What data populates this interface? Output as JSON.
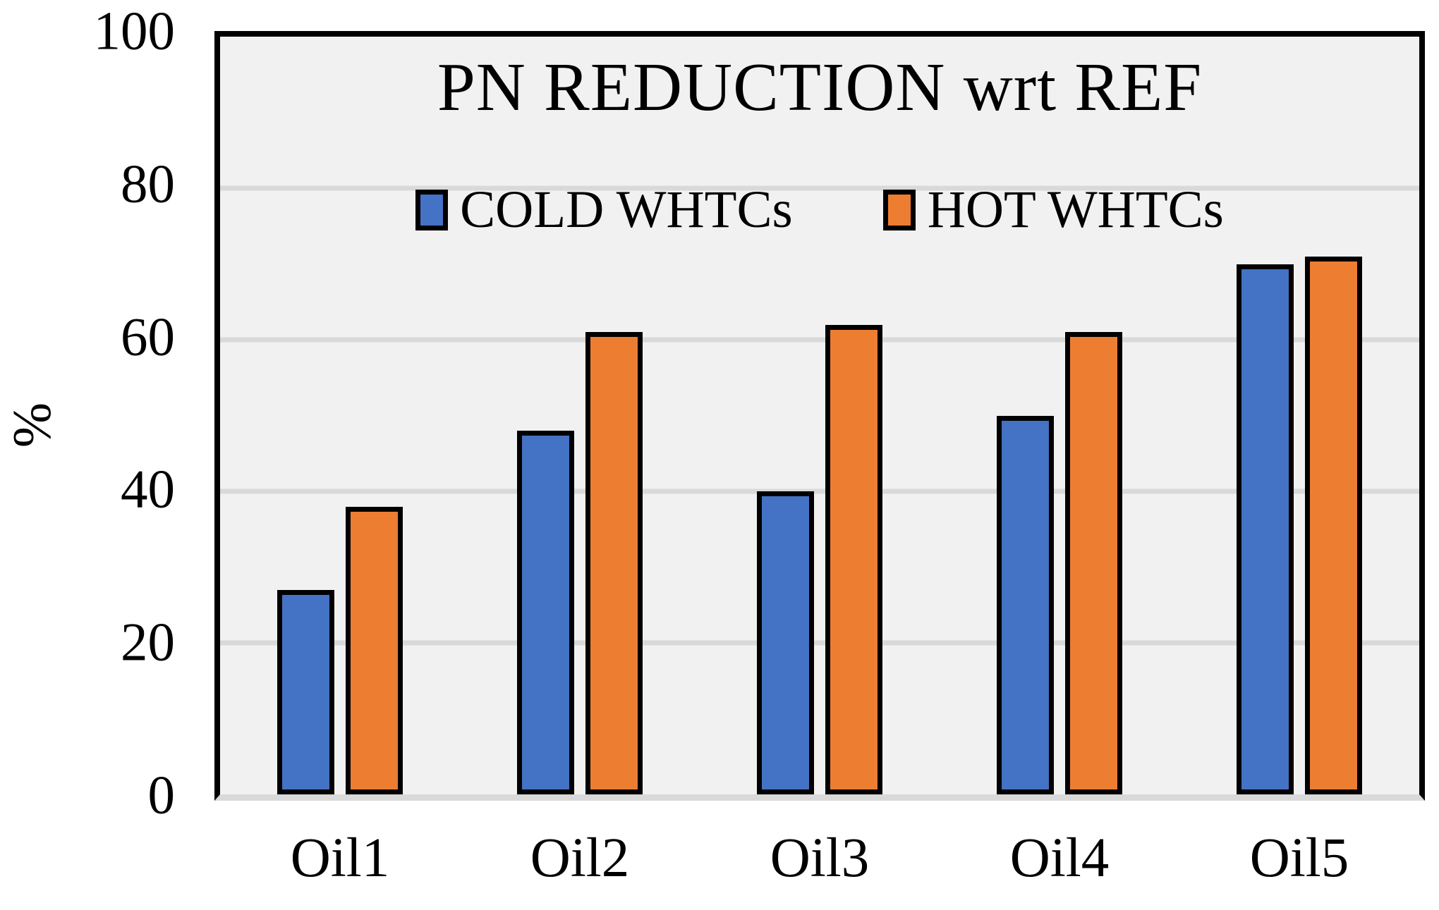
{
  "chart_data": {
    "type": "bar",
    "title": "PN REDUCTION wrt REF",
    "xlabel": "",
    "ylabel": "%",
    "categories": [
      "Oil1",
      "Oil2",
      "Oil3",
      "Oil4",
      "Oil5"
    ],
    "series": [
      {
        "name": "COLD WHTCs",
        "color": "#4472C4",
        "values": [
          27,
          48,
          40,
          50,
          70
        ]
      },
      {
        "name": "HOT WHTCs",
        "color": "#ED7D31",
        "values": [
          38,
          61,
          62,
          61,
          71
        ]
      }
    ],
    "ylim": [
      0,
      100
    ],
    "yticks": [
      0,
      20,
      40,
      60,
      80,
      100
    ],
    "grid": true,
    "legend_position": "inside-top-center",
    "colors": {
      "plot_background": "#F1F1F1",
      "outer_background": "#FFFFFF",
      "gridline": "#D9D9D9",
      "plot_border": "#000000",
      "bar_border": "#000000",
      "text": "#000000"
    }
  }
}
